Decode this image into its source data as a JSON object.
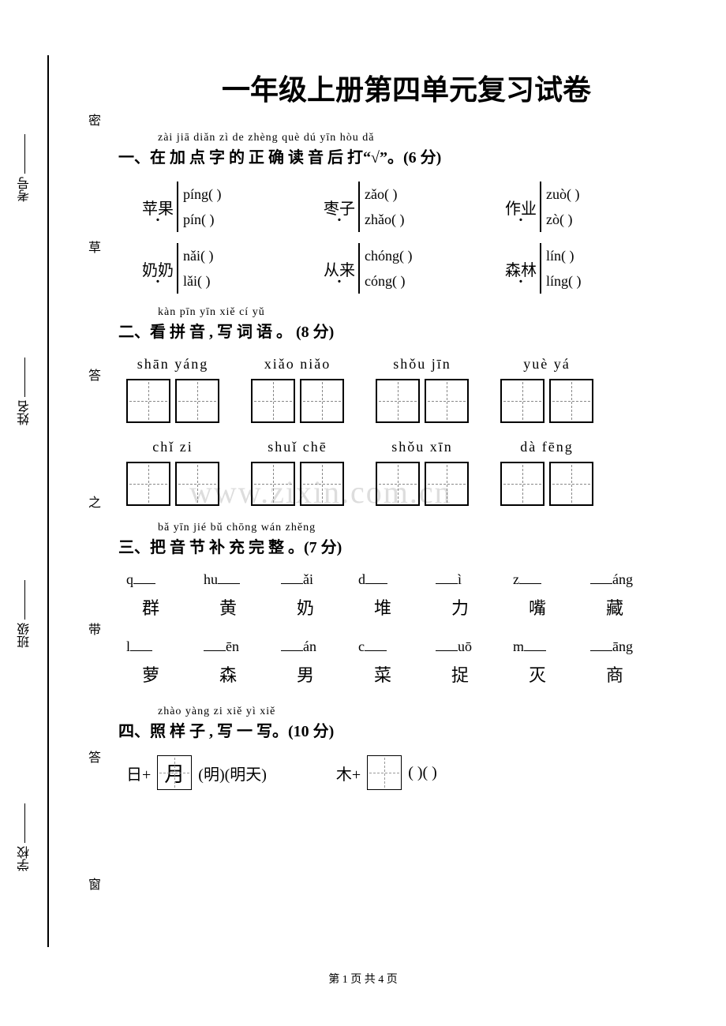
{
  "watermark": "www.zixin.com.cn",
  "binding_fields": [
    "学校",
    "班级",
    "姓名",
    "考号"
  ],
  "binding_dash_chars": [
    "窗",
    "答",
    "带",
    "之",
    "答",
    "草",
    "密"
  ],
  "title": "一年级上册第四单元复习试卷",
  "q1": {
    "pinyin": "zài jiā diǎn zì  de zhèng què dú yīn hòu dǎ",
    "heading": "一、在  加  点  字  的    正    确 读  音 后 打“√”。(6 分)",
    "rows": [
      [
        {
          "word_pre": "苹",
          "word_dot": "果",
          "a": "píng(        )",
          "b": "pín(        )"
        },
        {
          "word_pre": "枣",
          "word_dot": "子",
          "a": "zǎo(        )",
          "b": "zhǎo(        )"
        },
        {
          "word_pre": "作",
          "word_dot": "业",
          "a": "zuò(        )",
          "b": "zò(        )"
        }
      ],
      [
        {
          "word_pre": "奶",
          "word_dot": "奶",
          "a": "nǎi(        )",
          "b": "lǎi(        )"
        },
        {
          "word_pre": "从",
          "word_dot": "来",
          "a": "chóng(     )",
          "b": "cóng(       )"
        },
        {
          "word_pre": "森",
          "word_dot": "林",
          "a": "lín(        )",
          "b": "líng(        )"
        }
      ]
    ]
  },
  "q2": {
    "pinyin": "kàn pīn yīn   xiě cí yǔ",
    "heading": "二、看 拼 音 , 写 词 语 。 (8 分)",
    "rows": [
      [
        "shān  yáng",
        "xiǎo   niǎo",
        "shǒu     jīn",
        "yuè     yá"
      ],
      [
        "chǐ     zi",
        "shuǐ   chē",
        "shǒu   xīn",
        "dà    fēng"
      ]
    ]
  },
  "q3": {
    "pinyin": "bǎ yīn jié bǔ chōng wán zhěng",
    "heading": "三、把 音 节 补   充    完   整  。(7 分)",
    "row1_py": [
      {
        "pre": "q",
        "post": ""
      },
      {
        "pre": "hu",
        "post": ""
      },
      {
        "pre": "",
        "post": "ǎi"
      },
      {
        "pre": "d",
        "post": ""
      },
      {
        "pre": "",
        "post": "ì"
      },
      {
        "pre": "z",
        "post": ""
      },
      {
        "pre": "",
        "post": "áng"
      }
    ],
    "row1_ch": [
      "群",
      "黄",
      "奶",
      "堆",
      "力",
      "嘴",
      "藏"
    ],
    "row2_py": [
      {
        "pre": "l",
        "post": ""
      },
      {
        "pre": "",
        "post": "ēn"
      },
      {
        "pre": "",
        "post": "án"
      },
      {
        "pre": "c",
        "post": ""
      },
      {
        "pre": "",
        "post": "uō"
      },
      {
        "pre": "m",
        "post": ""
      },
      {
        "pre": "",
        "post": "āng"
      }
    ],
    "row2_ch": [
      "萝",
      "森",
      "男",
      "菜",
      "捉",
      "灭",
      "商"
    ]
  },
  "q4": {
    "pinyin": "zhào yàng zi   xiě yì xiě",
    "heading": "四、照   样  子 , 写 一 写。(10 分)",
    "example_left": "日+",
    "example_box": "月",
    "example_result": "(明)(明天)",
    "blank_left": "木+",
    "blank_result": "(        )(              )"
  },
  "footer": "第 1 页 共 4 页"
}
